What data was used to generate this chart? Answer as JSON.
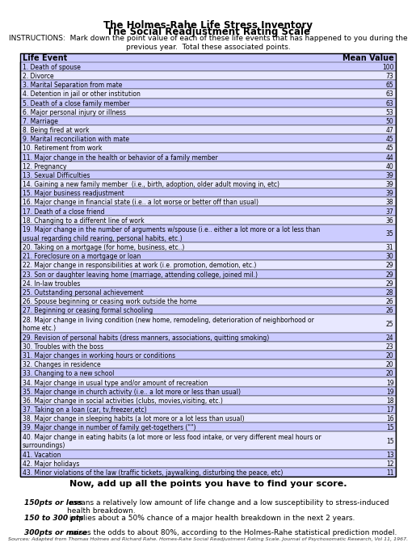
{
  "title1": "The Holmes-Rahe Life Stress Inventory",
  "title2": "The Social Readjustment Rating Scale",
  "instructions": "INSTRUCTIONS:  Mark down the point value of each of these life events that has happened to you during the\nprevious year.  Total these associated points.",
  "col_header_left": "Life Event",
  "col_header_right": "Mean Value",
  "events": [
    {
      "num": 1,
      "text": "Death of spouse",
      "value": 100
    },
    {
      "num": 2,
      "text": "Divorce",
      "value": 73
    },
    {
      "num": 3,
      "text": "Marital Separation from mate",
      "value": 65
    },
    {
      "num": 4,
      "text": "Detention in jail or other institution",
      "value": 63
    },
    {
      "num": 5,
      "text": "Death of a close family member",
      "value": 63
    },
    {
      "num": 6,
      "text": "Major personal injury or illness",
      "value": 53
    },
    {
      "num": 7,
      "text": "Marriage",
      "value": 50
    },
    {
      "num": 8,
      "text": "Being fired at work",
      "value": 47
    },
    {
      "num": 9,
      "text": "Marital reconciliation with mate",
      "value": 45
    },
    {
      "num": 10,
      "text": "Retirement from work",
      "value": 45
    },
    {
      "num": 11,
      "text": "Major change in the health or behavior of a family member",
      "value": 44
    },
    {
      "num": 12,
      "text": "Pregnancy",
      "value": 40
    },
    {
      "num": 13,
      "text": "Sexual Difficulties",
      "value": 39
    },
    {
      "num": 14,
      "text": "Gaining a new family member  (i.e., birth, adoption, older adult moving in, etc)",
      "value": 39
    },
    {
      "num": 15,
      "text": "Major business readjustment",
      "value": 39
    },
    {
      "num": 16,
      "text": "Major change in financial state (i.e.. a lot worse or better off than usual)",
      "value": 38
    },
    {
      "num": 17,
      "text": "Death of a close friend",
      "value": 37
    },
    {
      "num": 18,
      "text": "Changing to a different line of work",
      "value": 36
    },
    {
      "num": 19,
      "text": "Major change in the number of arguments w/spouse (i.e.. either a lot more or a lot less than\nusual regarding child rearing, personal habits, etc.)",
      "value": 35
    },
    {
      "num": 20,
      "text": "Taking on a mortgage (for home, business, etc..)",
      "value": 31
    },
    {
      "num": 21,
      "text": "Foreclosure on a mortgage or loan",
      "value": 30
    },
    {
      "num": 22,
      "text": "Major change in responsibilities at work (i.e. promotion, demotion, etc.)",
      "value": 29
    },
    {
      "num": 23,
      "text": "Son or daughter leaving home (marriage, attending college, joined mil.)",
      "value": 29
    },
    {
      "num": 24,
      "text": "In-law troubles",
      "value": 29
    },
    {
      "num": 25,
      "text": "Outstanding personal achievement",
      "value": 28
    },
    {
      "num": 26,
      "text": "Spouse beginning or ceasing work outside the home",
      "value": 26
    },
    {
      "num": 27,
      "text": "Beginning or ceasing formal schooling",
      "value": 26
    },
    {
      "num": 28,
      "text": "Major change in living condition (new home, remodeling, deterioration of neighborhood or\nhome etc.)",
      "value": 25
    },
    {
      "num": 29,
      "text": "Revision of personal habits (dress manners, associations, quitting smoking)",
      "value": 24
    },
    {
      "num": 30,
      "text": "Troubles with the boss",
      "value": 23
    },
    {
      "num": 31,
      "text": "Major changes in working hours or conditions",
      "value": 20
    },
    {
      "num": 32,
      "text": "Changes in residence",
      "value": 20
    },
    {
      "num": 33,
      "text": "Changing to a new school",
      "value": 20
    },
    {
      "num": 34,
      "text": "Major change in usual type and/or amount of recreation",
      "value": 19
    },
    {
      "num": 35,
      "text": "Major change in church activity (i.e.. a lot more or less than usual)",
      "value": 19
    },
    {
      "num": 36,
      "text": "Major change in social activities (clubs, movies,visiting, etc.)",
      "value": 18
    },
    {
      "num": 37,
      "text": "Taking on a loan (car, tv,freezer,etc)",
      "value": 17
    },
    {
      "num": 38,
      "text": "Major change in sleeping habits (a lot more or a lot less than usual)",
      "value": 16
    },
    {
      "num": 39,
      "text": "Major change in number of family get-togethers (\"\")",
      "value": 15
    },
    {
      "num": 40,
      "text": "Major change in eating habits (a lot more or less food intake, or very different meal hours or\nsurroundings)",
      "value": 15
    },
    {
      "num": 41,
      "text": "Vacation",
      "value": 13
    },
    {
      "num": 42,
      "text": "Major holidays",
      "value": 12
    },
    {
      "num": 43,
      "text": "Minor violations of the law (traffic tickets, jaywalking, disturbing the peace, etc)",
      "value": 11
    }
  ],
  "footer_title": "Now, add up all the points you have to find your score.",
  "footer_lines": [
    {
      "label": "150pts or less",
      "text": " means a relatively low amount of life change and a low susceptibility to stress-induced  health breakdown."
    },
    {
      "label": "150 to 300 pts",
      "text": " implies about a 50% chance of a major health breakdown in the next 2 years."
    },
    {
      "label": "300pts or more",
      "text": " raises the odds to about 80%, according to the Holmes-Rahe statistical prediction model."
    }
  ],
  "source": "Sources: Adapted from Thomas Holmes and Richard Rahe. Homes-Rahe Social Readjustment Rating Scale. Journal of Psychosomatic Research, Vol 11, 1967.",
  "bg_color": "#ffffff",
  "row_color_even": "#ccccff",
  "row_color_odd": "#e8e8ff",
  "header_color": "#ccccff",
  "border_color": "#000000"
}
